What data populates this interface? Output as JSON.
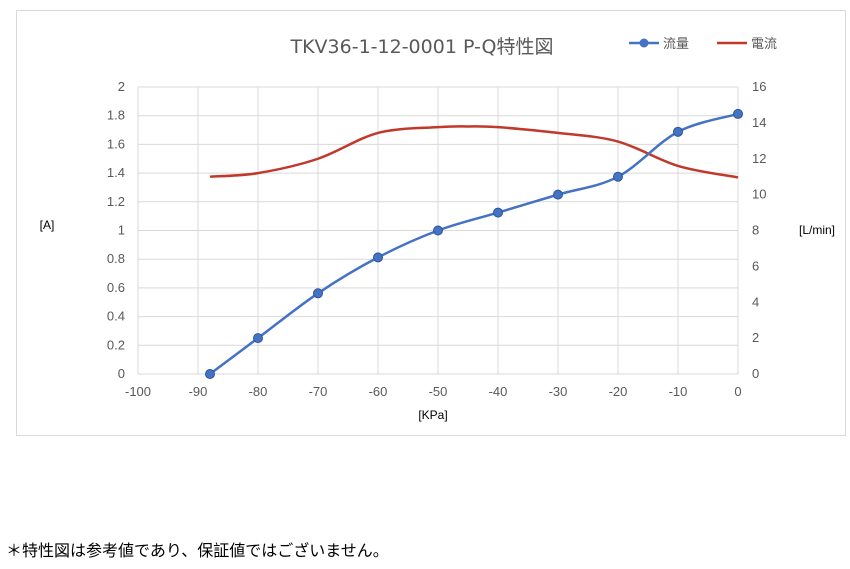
{
  "chart_data": {
    "type": "line",
    "title": "TKV36-1-12-0001 P-Q特性図",
    "xlabel": "[KPa]",
    "ylabel_left": "[A]",
    "ylabel_right": "[L/min]",
    "x_ticks": [
      "-100",
      "-90",
      "-80",
      "-70",
      "-60",
      "-50",
      "-40",
      "-30",
      "-20",
      "-10",
      "0"
    ],
    "y_left_ticks": [
      "0",
      "0.2",
      "0.4",
      "0.6",
      "0.8",
      "1",
      "1.2",
      "1.4",
      "1.6",
      "1.8",
      "2"
    ],
    "y_right_ticks": [
      "0",
      "2",
      "4",
      "6",
      "8",
      "10",
      "12",
      "14",
      "16"
    ],
    "xlim": [
      -100,
      0
    ],
    "ylim_left": [
      0,
      2
    ],
    "ylim_right": [
      0,
      16
    ],
    "grid": true,
    "legend_position": "top-right",
    "series": [
      {
        "name": "流量",
        "axis": "right",
        "color": "#4472c4",
        "markers": true,
        "x": [
          -88,
          -80,
          -70,
          -60,
          -50,
          -40,
          -30,
          -20,
          -10,
          0
        ],
        "y": [
          0,
          2,
          4.5,
          6.5,
          8,
          9,
          10,
          11,
          13.5,
          14.5
        ]
      },
      {
        "name": "電流",
        "axis": "left",
        "color": "#c0392b",
        "markers": false,
        "x": [
          -88,
          -80,
          -70,
          -60,
          -50,
          -45,
          -40,
          -30,
          -20,
          -10,
          0
        ],
        "y": [
          1.375,
          1.4,
          1.5,
          1.68,
          1.72,
          1.725,
          1.72,
          1.68,
          1.62,
          1.45,
          1.37
        ]
      }
    ]
  },
  "footnote": "＊特性図は参考値であり、保証値ではございません。"
}
